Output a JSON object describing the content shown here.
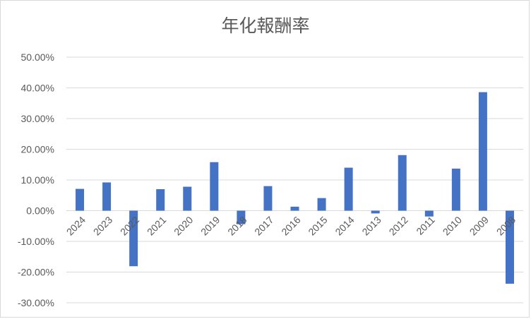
{
  "chart_data": {
    "type": "bar",
    "title": "年化報酬率",
    "xlabel": "",
    "ylabel": "",
    "ylim": [
      -30,
      50
    ],
    "yticks": [
      50,
      40,
      30,
      20,
      10,
      0,
      -10,
      -20,
      -30
    ],
    "ytick_labels": [
      "50.00%",
      "40.00%",
      "30.00%",
      "20.00%",
      "10.00%",
      "0.00%",
      "-10.00%",
      "-20.00%",
      "-30.00%"
    ],
    "grid": true,
    "legend": "none",
    "color": "#4472c4",
    "categories": [
      "2024",
      "2023",
      "2022",
      "2021",
      "2020",
      "2019",
      "2018",
      "2017",
      "2016",
      "2015",
      "2014",
      "2013",
      "2012",
      "2011",
      "2010",
      "2009",
      "2008"
    ],
    "values": [
      7.1,
      9.2,
      -18.1,
      7.0,
      7.8,
      15.8,
      -4.4,
      8.0,
      1.3,
      4.1,
      14.0,
      -0.9,
      18.1,
      -1.9,
      13.7,
      38.6,
      -23.8
    ]
  }
}
